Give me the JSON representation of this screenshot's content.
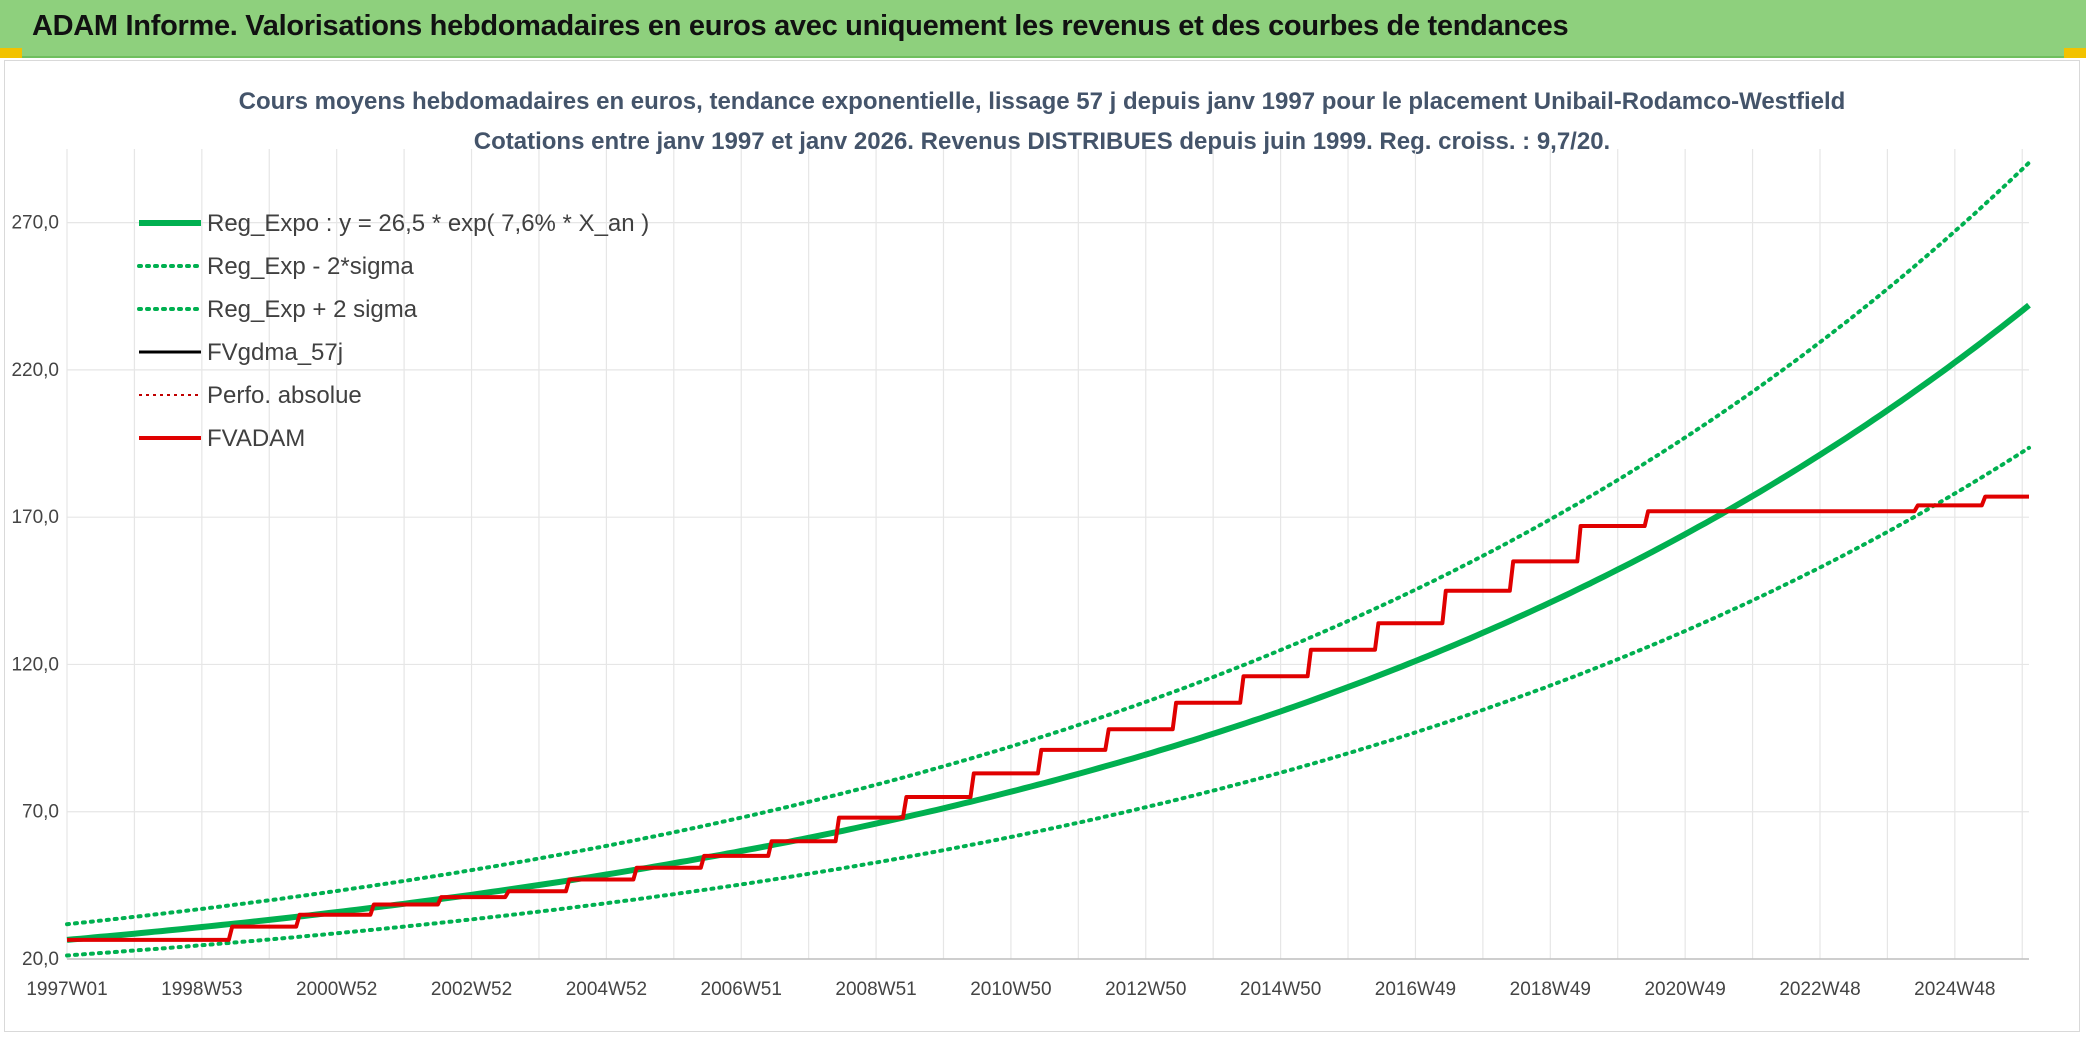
{
  "header": {
    "title": "ADAM Informe. Valorisations hebdomadaires en euros avec uniquement les revenus et des courbes de tendances"
  },
  "chart_data": {
    "type": "line",
    "title_line1": "Cours moyens hebdomadaires en euros, tendance exponentielle, lissage 57 j depuis janv 1997 pour le placement Unibail-Rodamco-Westfield",
    "title_line2": "Cotations entre janv 1997 et janv 2026. Revenus DISTRIBUES depuis juin 1999. Reg. croiss. : 9,7/20.",
    "xlabel": "",
    "ylabel": "",
    "x_range": [
      1997.0,
      2026.1
    ],
    "ylim": [
      20,
      295
    ],
    "y_ticks": [
      20,
      70,
      120,
      170,
      220,
      270
    ],
    "y_tick_labels": [
      "20,0",
      "70,0",
      "120,0",
      "170,0",
      "220,0",
      "270,0"
    ],
    "x_ticks": [
      1997.0,
      1999.0,
      2001.0,
      2003.0,
      2005.0,
      2007.0,
      2009.0,
      2011.0,
      2013.0,
      2015.0,
      2017.0,
      2019.0,
      2021.0,
      2023.0,
      2025.0
    ],
    "x_tick_labels": [
      "1997W01",
      "1998W53",
      "2000W52",
      "2002W52",
      "2004W52",
      "2006W51",
      "2008W51",
      "2010W50",
      "2012W50",
      "2014W50",
      "2016W49",
      "2018W49",
      "2020W49",
      "2022W48",
      "2024W48"
    ],
    "grid": true,
    "legend_position": "top-left",
    "regression": {
      "a": 26.5,
      "rate": 0.076,
      "x0": 1997.0,
      "sigma_factor": 0.2
    },
    "series": [
      {
        "name": "Reg_Expo : y = 26,5 * exp( 7,6% *  X_an )",
        "style": "solid",
        "color": "#00b050",
        "x": [
          1997,
          1999,
          2001,
          2003,
          2005,
          2007,
          2009,
          2011,
          2013,
          2015,
          2017,
          2019,
          2021,
          2023,
          2025,
          2026.1
        ],
        "values": [
          26.5,
          30.9,
          35.9,
          41.9,
          48.8,
          56.8,
          66.2,
          77.1,
          89.8,
          104.6,
          121.8,
          141.9,
          165.3,
          192.5,
          224.3,
          244.0
        ]
      },
      {
        "name": "Reg_Exp - 2*sigma",
        "style": "dotted",
        "color": "#00b050",
        "x": [
          1997,
          2001,
          2005,
          2009,
          2013,
          2017,
          2021,
          2025,
          2026.1
        ],
        "values": [
          21.2,
          28.7,
          39.0,
          53.0,
          71.8,
          97.4,
          132.2,
          179.4,
          195.2
        ]
      },
      {
        "name": "Reg_Exp + 2 sigma",
        "style": "dotted",
        "color": "#00b050",
        "x": [
          1997,
          2001,
          2005,
          2009,
          2013,
          2017,
          2021,
          2025,
          2026.1
        ],
        "values": [
          31.8,
          43.1,
          58.6,
          79.4,
          107.8,
          146.2,
          198.4,
          269.2,
          292.8
        ]
      },
      {
        "name": "FVgdma_57j",
        "style": "solid",
        "color": "#000000",
        "x": [
          1997.0,
          1999.4,
          1999.45,
          2000.4,
          2000.45,
          2001.5,
          2001.55,
          2002.5,
          2002.55,
          2003.5,
          2003.55,
          2004.4,
          2004.45,
          2005.4,
          2005.45,
          2006.4,
          2006.45,
          2007.4,
          2007.45,
          2008.4,
          2008.45,
          2009.4,
          2009.45,
          2010.4,
          2010.45,
          2011.4,
          2011.45,
          2012.4,
          2012.45,
          2013.4,
          2013.45,
          2014.4,
          2014.45,
          2015.4,
          2015.45,
          2016.4,
          2016.45,
          2017.4,
          2017.45,
          2018.4,
          2018.45,
          2019.4,
          2019.45,
          2020.4,
          2020.45,
          2024.4,
          2024.45,
          2025.4,
          2025.45,
          2026.1
        ],
        "values": [
          26.5,
          26.5,
          31.0,
          31.0,
          35.0,
          35.0,
          38.5,
          38.5,
          41.0,
          41.0,
          43.0,
          43.0,
          47.0,
          47.0,
          51.0,
          51.0,
          55.0,
          55.0,
          60.0,
          60.0,
          68.0,
          68.0,
          75.0,
          75.0,
          83.0,
          83.0,
          91.0,
          91.0,
          98.0,
          98.0,
          107.0,
          107.0,
          116.0,
          116.0,
          125.0,
          125.0,
          134.0,
          134.0,
          145.0,
          145.0,
          155.0,
          155.0,
          167.0,
          167.0,
          172.0,
          172.0,
          174.0,
          174.0,
          177.0,
          177.0
        ]
      },
      {
        "name": "Perfo. absolue",
        "style": "dotted",
        "color": "#c00000",
        "x": [
          1997.0,
          1999.4,
          1999.45,
          2000.4,
          2000.45,
          2001.5,
          2001.55,
          2002.5,
          2002.55,
          2003.5,
          2003.55,
          2004.4,
          2004.45,
          2005.4,
          2005.45,
          2006.4,
          2006.45,
          2007.4,
          2007.45,
          2008.4,
          2008.45,
          2009.4,
          2009.45,
          2010.4,
          2010.45,
          2011.4,
          2011.45,
          2012.4,
          2012.45,
          2013.4,
          2013.45,
          2014.4,
          2014.45,
          2015.4,
          2015.45,
          2016.4,
          2016.45,
          2017.4,
          2017.45,
          2018.4,
          2018.45,
          2019.4,
          2019.45,
          2020.4,
          2020.45,
          2024.4,
          2024.45,
          2025.4,
          2025.45,
          2026.1
        ],
        "values": [
          26.5,
          26.5,
          31.0,
          31.0,
          35.0,
          35.0,
          38.5,
          38.5,
          41.0,
          41.0,
          43.0,
          43.0,
          47.0,
          47.0,
          51.0,
          51.0,
          55.0,
          55.0,
          60.0,
          60.0,
          68.0,
          68.0,
          75.0,
          75.0,
          83.0,
          83.0,
          91.0,
          91.0,
          98.0,
          98.0,
          107.0,
          107.0,
          116.0,
          116.0,
          125.0,
          125.0,
          134.0,
          134.0,
          145.0,
          145.0,
          155.0,
          155.0,
          167.0,
          167.0,
          172.0,
          172.0,
          174.0,
          174.0,
          177.0,
          177.0
        ]
      },
      {
        "name": "FVADAM",
        "style": "solid",
        "color": "#e00000",
        "x": [
          1997.0,
          1999.4,
          1999.45,
          2000.4,
          2000.45,
          2001.5,
          2001.55,
          2002.5,
          2002.55,
          2003.5,
          2003.55,
          2004.4,
          2004.45,
          2005.4,
          2005.45,
          2006.4,
          2006.45,
          2007.4,
          2007.45,
          2008.4,
          2008.45,
          2009.4,
          2009.45,
          2010.4,
          2010.45,
          2011.4,
          2011.45,
          2012.4,
          2012.45,
          2013.4,
          2013.45,
          2014.4,
          2014.45,
          2015.4,
          2015.45,
          2016.4,
          2016.45,
          2017.4,
          2017.45,
          2018.4,
          2018.45,
          2019.4,
          2019.45,
          2020.4,
          2020.45,
          2024.4,
          2024.45,
          2025.4,
          2025.45,
          2026.1
        ],
        "values": [
          26.5,
          26.5,
          31.0,
          31.0,
          35.0,
          35.0,
          38.5,
          38.5,
          41.0,
          41.0,
          43.0,
          43.0,
          47.0,
          47.0,
          51.0,
          51.0,
          55.0,
          55.0,
          60.0,
          60.0,
          68.0,
          68.0,
          75.0,
          75.0,
          83.0,
          83.0,
          91.0,
          91.0,
          98.0,
          98.0,
          107.0,
          107.0,
          116.0,
          116.0,
          125.0,
          125.0,
          134.0,
          134.0,
          145.0,
          145.0,
          155.0,
          155.0,
          167.0,
          167.0,
          172.0,
          172.0,
          174.0,
          174.0,
          177.0,
          177.0
        ]
      }
    ]
  }
}
